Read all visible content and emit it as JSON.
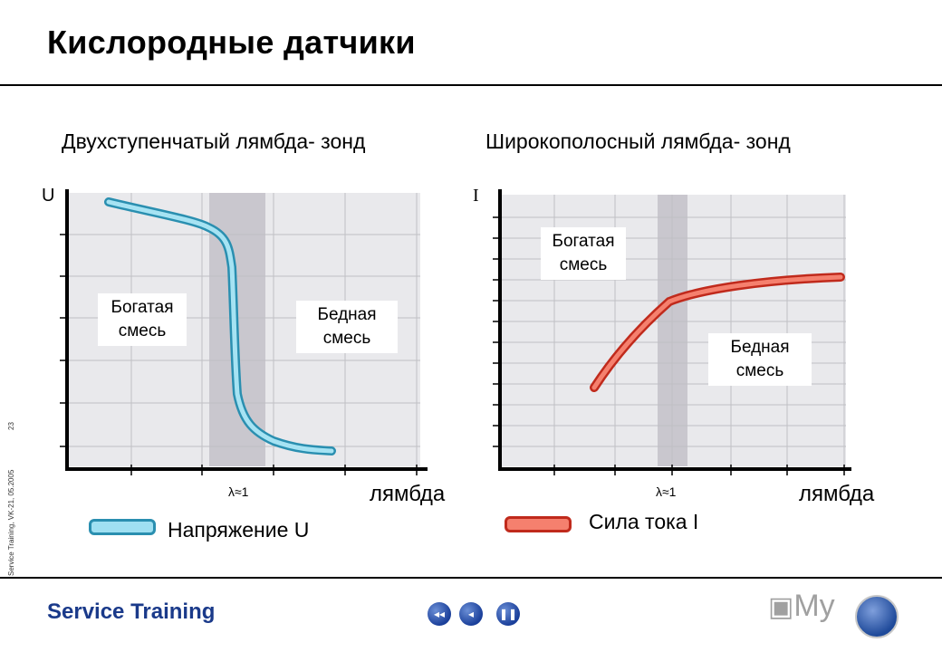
{
  "title": "Кислородные датчики",
  "side_text": "Service Training, VK-21, 05.2005",
  "page_number": "23",
  "left_chart": {
    "subtitle": "Двухступенчатый лямбда- зонд",
    "y_axis_letter": "U",
    "x_axis_label": "лямбда",
    "lambda_mark": "λ≈1",
    "annotation_rich": [
      "Богатая",
      "смесь"
    ],
    "annotation_lean": [
      "Бедная",
      "смесь"
    ],
    "legend": "Напряжение U",
    "curve_color": "#3db3d6"
  },
  "right_chart": {
    "subtitle": "Широкополосный лямбда- зонд",
    "y_axis_letter": "I",
    "x_axis_label": "лямбда",
    "lambda_mark": "λ≈1",
    "annotation_rich": [
      "Богатая",
      "смесь"
    ],
    "annotation_lean": [
      "Бедная",
      "смесь"
    ],
    "legend": "Сила тока I",
    "curve_color": "#e04030"
  },
  "footer": {
    "title": "Service Training",
    "nav": [
      "back-start-icon",
      "back-icon",
      "pause-icon"
    ],
    "watermark": "My",
    "logo": "VW"
  }
}
